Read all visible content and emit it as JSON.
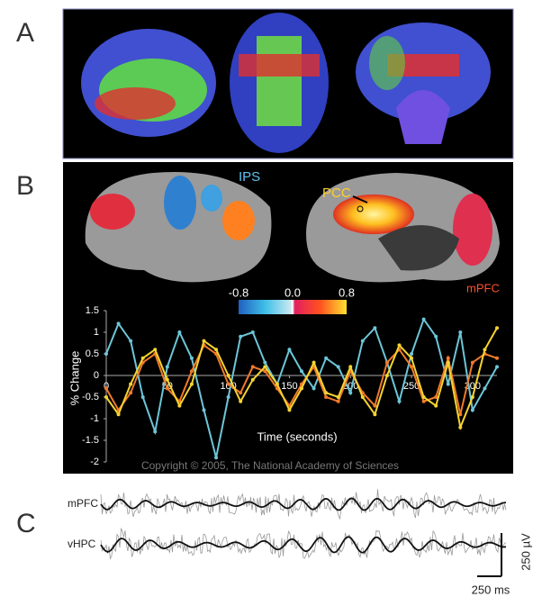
{
  "panels": {
    "a": {
      "label": "A"
    },
    "b": {
      "label": "B",
      "regions": [
        "IPS",
        "PCC",
        "mPFC"
      ],
      "colorbar": [
        "-0.8",
        "0.0",
        "0.8"
      ],
      "copyright": "Copyright © 2005, The National Academy of Sciences"
    },
    "c": {
      "label": "C",
      "traces": [
        "mPFC",
        "vHPC"
      ],
      "scale_y": "250 µV",
      "scale_x": "250 ms"
    }
  },
  "chart_data": {
    "type": "line",
    "xlabel": "Time (seconds)",
    "ylabel": "% Change",
    "x": [
      0,
      10,
      20,
      30,
      40,
      50,
      60,
      70,
      80,
      90,
      100,
      110,
      120,
      130,
      140,
      150,
      160,
      170,
      180,
      190,
      200,
      210,
      220,
      230,
      240,
      250,
      260,
      270,
      280,
      290,
      300,
      310,
      320
    ],
    "series": [
      {
        "color": "#6cc6d8",
        "values": [
          0.5,
          1.2,
          0.8,
          -0.5,
          -1.3,
          0.2,
          1.0,
          0.4,
          -0.8,
          -1.9,
          -0.5,
          0.9,
          1.0,
          0.3,
          -0.2,
          0.6,
          0.1,
          -0.3,
          0.4,
          0.2,
          -0.4,
          0.8,
          1.1,
          0.3,
          -0.6,
          0.5,
          1.3,
          0.9,
          -0.2,
          1.0,
          -0.8,
          -0.3,
          0.2
        ]
      },
      {
        "color": "#f07a2a",
        "values": [
          -0.3,
          -0.8,
          -0.4,
          0.3,
          0.5,
          -0.3,
          -0.6,
          0.1,
          0.7,
          0.5,
          -0.2,
          -0.4,
          0.2,
          0.1,
          -0.3,
          -0.7,
          -0.2,
          0.2,
          -0.5,
          -0.6,
          0.1,
          -0.4,
          -0.7,
          0.3,
          0.6,
          0.2,
          -0.6,
          -0.5,
          0.4,
          -0.9,
          0.3,
          0.5,
          0.4
        ]
      },
      {
        "color": "#f5d430",
        "values": [
          -0.5,
          -0.9,
          -0.2,
          0.4,
          0.6,
          -0.1,
          -0.7,
          -0.2,
          0.8,
          0.6,
          0.0,
          -0.6,
          -0.1,
          0.2,
          -0.2,
          -0.8,
          -0.3,
          0.3,
          -0.4,
          -0.5,
          0.2,
          -0.5,
          -0.9,
          0.0,
          0.7,
          0.4,
          -0.5,
          -0.7,
          0.3,
          -1.2,
          -0.5,
          0.6,
          1.1
        ]
      }
    ],
    "xlim": [
      0,
      320
    ],
    "xticks": [
      0,
      50,
      100,
      150,
      200,
      250,
      300
    ],
    "ylim": [
      -2,
      1.5
    ],
    "yticks": [
      1.5,
      1,
      0.5,
      0,
      -0.5,
      -1,
      -1.5,
      -2
    ]
  }
}
